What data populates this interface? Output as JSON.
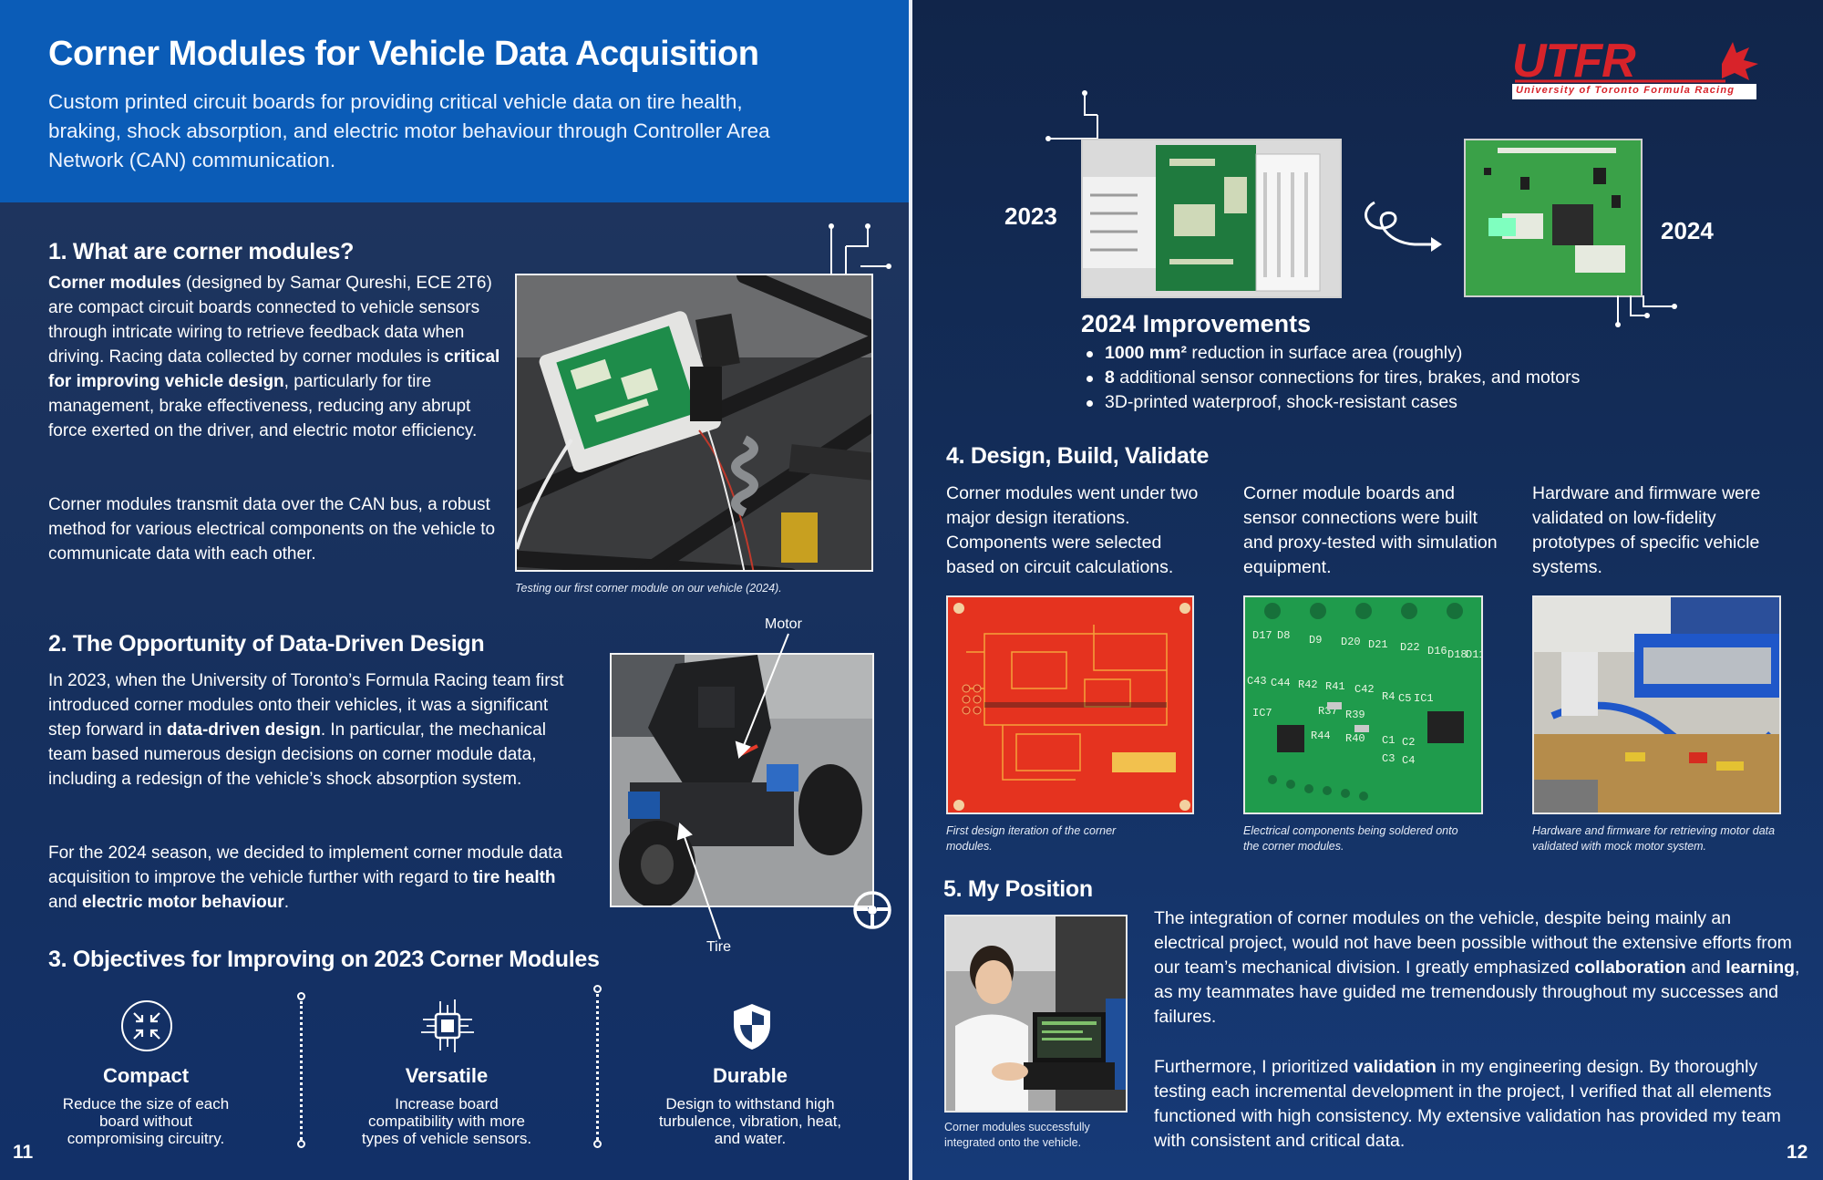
{
  "left_page": {
    "title": "Corner Modules for Vehicle Data Acquisition",
    "subtitle": "Custom printed circuit boards for providing critical vehicle data on tire health, braking, shock absorption, and electric motor behaviour through Controller Area Network (CAN) communication.",
    "section1": {
      "heading": "1. What are corner modules?",
      "p1_bold1": "Corner modules",
      "p1_text1": " (designed by Samar Qureshi, ECE 2T6) are compact circuit boards connected to vehicle sensors through intricate wiring to retrieve feedback data when driving. Racing data collected by corner modules is ",
      "p1_bold2": "critical for improving vehicle design",
      "p1_text2": ", particularly for tire management, brake effectiveness, reducing any abrupt force exerted on the driver, and electric motor efficiency.",
      "p2": "Corner modules transmit data over the CAN bus, a robust method for various electrical components on the vehicle to communicate data with each other.",
      "photo_caption": "Testing our first corner module on our vehicle (2024)."
    },
    "section2": {
      "heading": "2. The Opportunity of Data-Driven Design",
      "p1_text1": "In 2023, when the University of Toronto’s Formula Racing team first introduced corner modules onto their vehicles, it was a significant step forward in ",
      "p1_bold1": "data-driven design",
      "p1_text2": ". In particular, the mechanical team based numerous design decisions on corner module data, including a redesign of the vehicle’s shock absorption system.",
      "p2_text1": "For the 2024 season, we decided to implement corner module data acquisition to improve the vehicle further with regard to ",
      "p2_bold1": "tire health",
      "p2_text2": " and ",
      "p2_bold2": "electric motor behaviour",
      "p2_text3": ".",
      "label_motor": "Motor",
      "label_tire": "Tire"
    },
    "section3": {
      "heading": "3. Objectives for Improving on 2023 Corner Modules",
      "objectives": [
        {
          "title": "Compact",
          "desc": "Reduce the size of each board without compromising circuitry.",
          "icon": "compress-arrows-icon"
        },
        {
          "title": "Versatile",
          "desc": "Increase board compatibility with more types of vehicle sensors.",
          "icon": "chip-icon"
        },
        {
          "title": "Durable",
          "desc": "Design to withstand high turbulence, vibration, heat, and water.",
          "icon": "shield-icon"
        }
      ]
    },
    "page_number": "11"
  },
  "right_page": {
    "logo_text": "UTFR",
    "logo_subtext": "University of Toronto Formula Racing",
    "year_2023": "2023",
    "year_2024": "2024",
    "improvements": {
      "heading": "2024 Improvements",
      "items": [
        {
          "bold": "1000 mm²",
          "text": " reduction in surface area (roughly)"
        },
        {
          "bold": "8",
          "text": " additional sensor connections for tires, brakes, and motors"
        },
        {
          "bold": "",
          "text": "3D-printed waterproof, shock-resistant cases"
        }
      ]
    },
    "section4": {
      "heading": "4. Design, Build, Validate",
      "columns": [
        {
          "text": "Corner modules went under two major design iterations. Components were selected based on circuit calculations.",
          "caption": "First design iteration of the corner modules."
        },
        {
          "text": "Corner module boards and sensor connections were built and proxy-tested with simulation equipment.",
          "caption": "Electrical components being soldered onto the corner modules."
        },
        {
          "text": "Hardware and firmware were validated on low-fidelity prototypes of specific vehicle systems.",
          "caption": "Hardware and firmware for retrieving motor data validated with mock motor system."
        }
      ]
    },
    "section5": {
      "heading": "5. My Position",
      "p1_text1": "The integration of corner modules on the vehicle, despite being mainly an electrical project, would not have been possible without the extensive efforts from our team’s mechanical division. I greatly emphasized ",
      "p1_bold1": "collaboration",
      "p1_text2": " and ",
      "p1_bold2": "learning",
      "p1_text3": ", as my teammates have guided me tremendously throughout my successes and failures.",
      "p2_text1": "Furthermore, I prioritized ",
      "p2_bold1": "validation",
      "p2_text2": " in my engineering design. By thoroughly testing each incremental development in the project, I verified that all elements functioned with high consistency. My extensive validation has provided my team with consistent and critical data.",
      "photo_caption": "Corner modules successfully integrated onto the vehicle."
    },
    "pcb_silkscreen": {
      "board_labels": [
        "D17",
        "D8",
        "D9",
        "D20",
        "D21",
        "D22",
        "D16",
        "D18",
        "D11",
        "C43",
        "C44",
        "R42",
        "R41",
        "C42",
        "R4",
        "C5",
        "IC1",
        "IC7",
        "R37",
        "R39",
        "R44",
        "R40",
        "C1",
        "C2",
        "C3",
        "C4"
      ]
    },
    "page_number": "12",
    "colors": {
      "brand_red": "#d8232a",
      "accent_blue": "#0b5cb7"
    }
  }
}
